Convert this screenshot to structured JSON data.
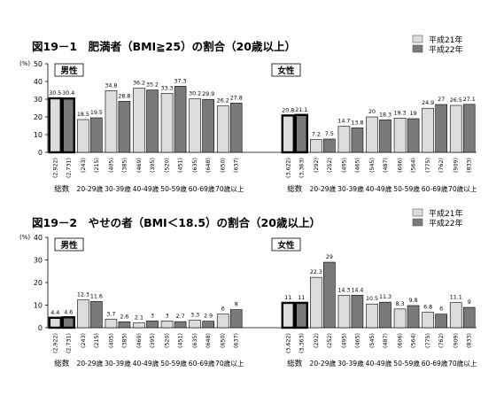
{
  "legend": {
    "series1": "平成21年",
    "series2": "平成22年"
  },
  "colors": {
    "series1": "#dcdcdc",
    "series2": "#7a7a7a",
    "outline": "#000000"
  },
  "chart_data": [
    {
      "type": "bar",
      "title": "図19－1　肥満者（BMI≧25）の割合（20歳以上）",
      "ylabel": "(%)",
      "ylim": [
        0,
        50
      ],
      "yticks": [
        0,
        10,
        20,
        30,
        40,
        50
      ],
      "grid": false,
      "legend_position": "top-right",
      "groups": [
        {
          "name": "男性",
          "categories": [
            "総数",
            "20-29歳",
            "30-39歳",
            "40-49歳",
            "50-59歳",
            "60-69歳",
            "70歳以上"
          ]
        },
        {
          "name": "女性",
          "categories": [
            "総数",
            "20-29歳",
            "30-39歳",
            "40-49歳",
            "50-59歳",
            "60-69歳",
            "70歳以上"
          ]
        }
      ],
      "series": [
        {
          "name": "平成21年",
          "values": [
            30.5,
            18.5,
            34.8,
            36.2,
            33.3,
            30.2,
            26.2,
            20.8,
            7.2,
            14.7,
            20.0,
            19.3,
            24.9,
            26.5
          ]
        },
        {
          "name": "平成22年",
          "values": [
            30.4,
            19.5,
            28.8,
            35.2,
            37.3,
            29.9,
            27.8,
            21.1,
            7.5,
            13.8,
            18.3,
            19.0,
            27.0,
            27.1
          ]
        }
      ],
      "n": [
        [
          "(2,922)",
          "(243)",
          "(405)",
          "(469)",
          "(520)",
          "(635)",
          "(650)",
          "(3,622)",
          "(292)",
          "(495)",
          "(545)",
          "(606)",
          "(775)",
          "(909)"
        ],
        [
          "(2,731)",
          "(215)",
          "(385)",
          "(395)",
          "(451)",
          "(648)",
          "(637)",
          "(3,363)",
          "(252)",
          "(465)",
          "(487)",
          "(564)",
          "(762)",
          "(833)"
        ]
      ]
    },
    {
      "type": "bar",
      "title": "図19－2　やせの者（BMI＜18.5）の割合（20歳以上）",
      "ylabel": "(%)",
      "ylim": [
        0,
        40
      ],
      "yticks": [
        0,
        10,
        20,
        30,
        40
      ],
      "grid": false,
      "legend_position": "top-right",
      "groups": [
        {
          "name": "男性",
          "categories": [
            "総数",
            "20-29歳",
            "30-39歳",
            "40-49歳",
            "50-59歳",
            "60-69歳",
            "70歳以上"
          ]
        },
        {
          "name": "女性",
          "categories": [
            "総数",
            "20-29歳",
            "30-39歳",
            "40-49歳",
            "50-59歳",
            "60-69歳",
            "70歳以上"
          ]
        }
      ],
      "series": [
        {
          "name": "平成21年",
          "values": [
            4.4,
            12.3,
            3.7,
            2.1,
            3.0,
            3.3,
            6.0,
            11.0,
            22.3,
            14.3,
            10.5,
            8.3,
            6.8,
            11.1
          ]
        },
        {
          "name": "平成22年",
          "values": [
            4.6,
            11.6,
            2.6,
            3.0,
            2.7,
            2.9,
            8.0,
            11.0,
            29.0,
            14.4,
            11.3,
            9.8,
            6.0,
            9.0
          ]
        }
      ],
      "n": [
        [
          "(2,922)",
          "(243)",
          "(405)",
          "(469)",
          "(520)",
          "(635)",
          "(650)",
          "(3,622)",
          "(292)",
          "(495)",
          "(545)",
          "(606)",
          "(775)",
          "(909)"
        ],
        [
          "(2,731)",
          "(215)",
          "(385)",
          "(395)",
          "(451)",
          "(648)",
          "(637)",
          "(3,363)",
          "(252)",
          "(465)",
          "(487)",
          "(564)",
          "(762)",
          "(833)"
        ]
      ]
    }
  ]
}
